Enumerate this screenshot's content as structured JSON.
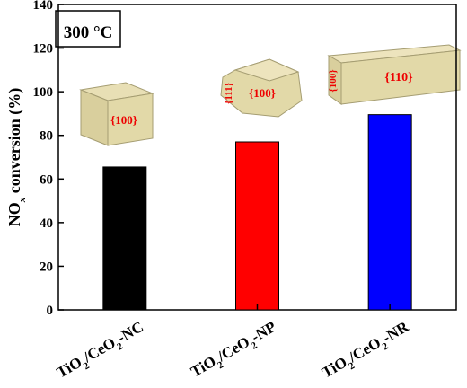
{
  "chart_data": {
    "type": "bar",
    "y_label": "NOx conversion (%)",
    "categories": [
      "TiO2/CeO2-NC",
      "TiO2/CeO2-NP",
      "TiO2/CeO2-NR"
    ],
    "values": [
      65.5,
      77,
      89.5
    ],
    "colors": [
      "#000000",
      "#ff0000",
      "#0000ff"
    ],
    "ylim": [
      0,
      140
    ],
    "yticks": [
      0,
      20,
      40,
      60,
      80,
      100,
      120,
      140
    ],
    "annotations": [
      "300 °C",
      "{100}",
      "{100}",
      "{111}",
      "{110}",
      "{100}"
    ]
  }
}
